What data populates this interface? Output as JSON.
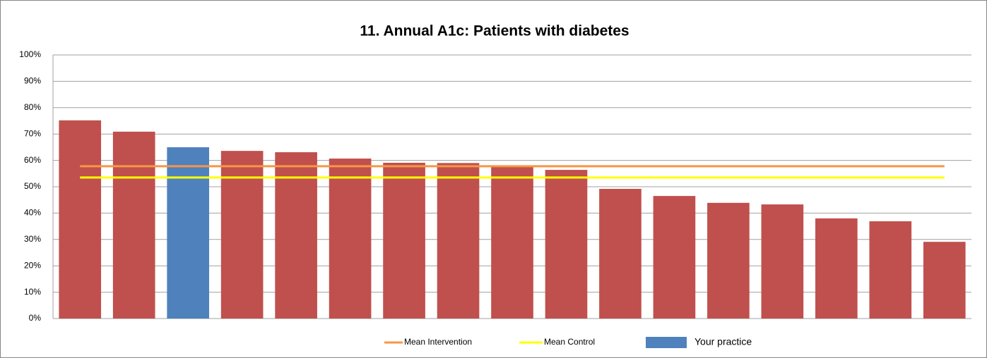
{
  "chart_data": {
    "type": "bar",
    "title": "11. Annual A1c: Patients with diabetes",
    "categories": [
      null,
      null,
      null,
      null,
      null,
      null,
      null,
      null,
      null,
      null,
      null,
      null,
      null,
      null,
      null,
      null,
      null
    ],
    "values": [
      75.2,
      70.9,
      65.0,
      63.6,
      63.1,
      60.7,
      59.1,
      59.0,
      57.8,
      56.4,
      49.2,
      46.5,
      43.9,
      43.3,
      38.0,
      36.9,
      29.1
    ],
    "bar_colors": [
      "#c0504d",
      "#c0504d",
      "#4f81bd",
      "#c0504d",
      "#c0504d",
      "#c0504d",
      "#c0504d",
      "#c0504d",
      "#c0504d",
      "#c0504d",
      "#c0504d",
      "#c0504d",
      "#c0504d",
      "#c0504d",
      "#c0504d",
      "#c0504d",
      "#c0504d"
    ],
    "lines": [
      {
        "name": "Mean Intervention",
        "color": "#f79646",
        "value": 57.8
      },
      {
        "name": "Mean Control",
        "color": "#ffff00",
        "value": 53.5
      }
    ],
    "legend_patch": {
      "name": "Your practice",
      "color": "#4f81bd"
    },
    "ylim": [
      0,
      100
    ],
    "yticks": [
      {
        "value": 0,
        "label": "0%"
      },
      {
        "value": 10,
        "label": "10%"
      },
      {
        "value": 20,
        "label": "20%"
      },
      {
        "value": 30,
        "label": "30%"
      },
      {
        "value": 40,
        "label": "40%"
      },
      {
        "value": 50,
        "label": "50%"
      },
      {
        "value": 60,
        "label": "60%"
      },
      {
        "value": 70,
        "label": "70%"
      },
      {
        "value": 80,
        "label": "80%"
      },
      {
        "value": 90,
        "label": "90%"
      },
      {
        "value": 100,
        "label": "100%"
      }
    ],
    "grid": true,
    "legend": "bottom"
  }
}
